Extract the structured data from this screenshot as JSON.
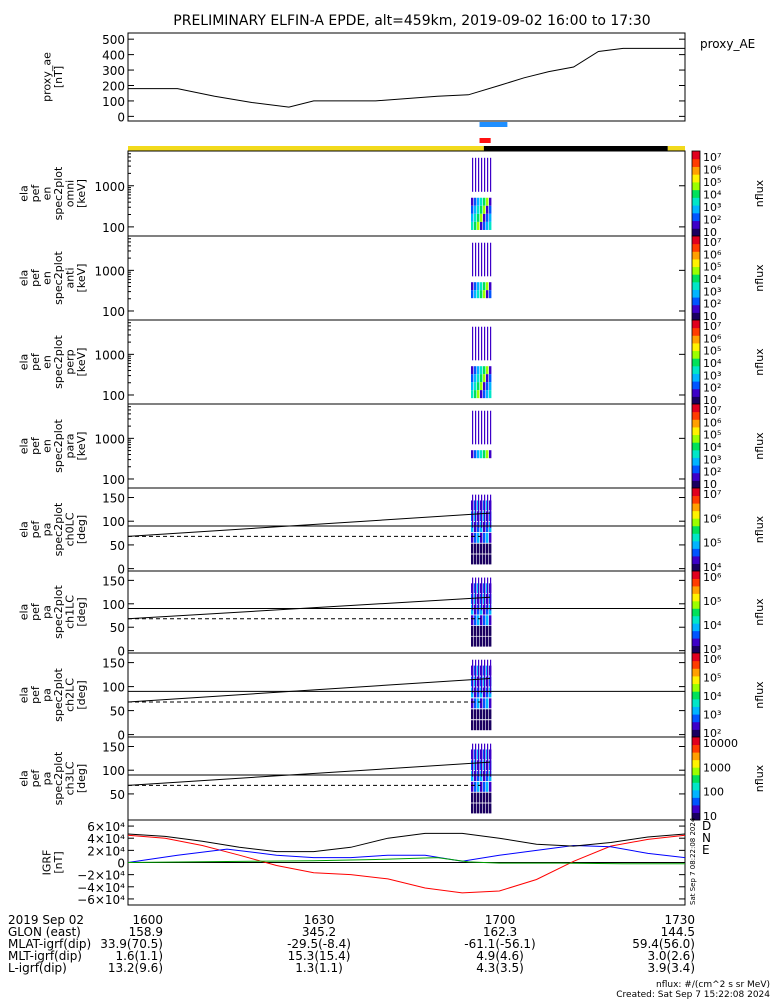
{
  "title": "PRELIMINARY ELFIN-A EPDE, alt=459km, 2019-09-02 16:00 to 17:30",
  "colors": {
    "yellow_bar": "#f2da1c",
    "black_bar": "#000000",
    "blue_marker": "#1f8fff",
    "red_marker": "#ff1010",
    "bx": "#0000ff",
    "by": "#00b000",
    "bz": "#ff0000"
  },
  "chart_data": [
    {
      "id": "proxy_ae",
      "type": "line",
      "ylabel_lines": [
        "proxy_ae",
        "[nT]"
      ],
      "series_label": "proxy_AE",
      "ylim": [
        -30,
        540
      ],
      "yticks": [
        0,
        100,
        200,
        300,
        400,
        500
      ],
      "x_unit": "minutes after 16:00",
      "xlim": [
        0,
        90
      ],
      "x": [
        0,
        8,
        14,
        20,
        26,
        30,
        36,
        40,
        50,
        55,
        60,
        64,
        68,
        72,
        76,
        80,
        84,
        88,
        90
      ],
      "values": [
        180,
        180,
        130,
        90,
        60,
        100,
        100,
        100,
        130,
        140,
        200,
        250,
        290,
        320,
        420,
        440,
        440,
        440,
        440
      ],
      "markers": {
        "blue": [
          56.8,
          61.3
        ],
        "red": [
          56.8,
          58.6
        ]
      },
      "orbit_bar": {
        "yellow": [
          [
            0,
            57.5
          ],
          [
            87.2,
            90
          ]
        ],
        "black": [
          [
            57.5,
            87.2
          ]
        ]
      }
    },
    {
      "id": "en_omni",
      "type": "heatmap",
      "ylabel_lines": [
        "ela",
        "pef",
        "en",
        "spec2plot",
        "omni",
        "[keV]"
      ],
      "ylim": [
        60,
        7000
      ],
      "yscale": "log",
      "yticks": [
        "100",
        "1000"
      ],
      "colorbar": {
        "label": "nflux",
        "ticks": [
          "10",
          "10²",
          "10³",
          "10⁴",
          "10⁵",
          "10⁶",
          "10⁷"
        ]
      }
    },
    {
      "id": "en_anti",
      "type": "heatmap",
      "ylabel_lines": [
        "ela",
        "pef",
        "en",
        "spec2plot",
        "anti",
        "[keV]"
      ],
      "ylim": [
        60,
        7000
      ],
      "yscale": "log",
      "yticks": [
        "100",
        "1000"
      ],
      "colorbar": {
        "label": "nflux",
        "ticks": [
          "10",
          "10²",
          "10³",
          "10⁴",
          "10⁵",
          "10⁶",
          "10⁷"
        ]
      }
    },
    {
      "id": "en_perp",
      "type": "heatmap",
      "ylabel_lines": [
        "ela",
        "pef",
        "en",
        "spec2plot",
        "perp",
        "[keV]"
      ],
      "ylim": [
        60,
        7000
      ],
      "yscale": "log",
      "yticks": [
        "100",
        "1000"
      ],
      "colorbar": {
        "label": "nflux",
        "ticks": [
          "10",
          "10²",
          "10³",
          "10⁴",
          "10⁵",
          "10⁶",
          "10⁷"
        ]
      }
    },
    {
      "id": "en_para",
      "type": "heatmap",
      "ylabel_lines": [
        "ela",
        "pef",
        "en",
        "spec2plot",
        "para",
        "[keV]"
      ],
      "ylim": [
        60,
        7000
      ],
      "yscale": "log",
      "yticks": [
        "100",
        "1000"
      ],
      "colorbar": {
        "label": "nflux",
        "ticks": [
          "10",
          "10²",
          "10³",
          "10⁴",
          "10⁵",
          "10⁶",
          "10⁷"
        ]
      }
    },
    {
      "id": "pa_ch0",
      "type": "heatmap",
      "ylabel_lines": [
        "ela",
        "pef",
        "pa",
        "spec2plot",
        "ch0LC",
        "[deg]"
      ],
      "ylim": [
        -5,
        170
      ],
      "yticks": [
        "0",
        "50",
        "100",
        "150"
      ],
      "lines": {
        "ninety": 90,
        "lc_solid": [
          68,
          117
        ],
        "lc_dashed": 68
      },
      "colorbar": {
        "label": "nflux",
        "ticks": [
          "10⁴",
          "10⁵",
          "10⁶",
          "10⁷"
        ]
      }
    },
    {
      "id": "pa_ch1",
      "type": "heatmap",
      "ylabel_lines": [
        "ela",
        "pef",
        "pa",
        "spec2plot",
        "ch1LC",
        "[deg]"
      ],
      "ylim": [
        -5,
        170
      ],
      "yticks": [
        "0",
        "50",
        "100",
        "150"
      ],
      "lines": {
        "ninety": 90,
        "lc_solid": [
          68,
          114
        ],
        "lc_dashed": 68
      },
      "colorbar": {
        "label": "nflux",
        "ticks": [
          "10³",
          "10⁴",
          "10⁵",
          "10⁶"
        ]
      }
    },
    {
      "id": "pa_ch2",
      "type": "heatmap",
      "ylabel_lines": [
        "ela",
        "pef",
        "pa",
        "spec2plot",
        "ch2LC",
        "[deg]"
      ],
      "ylim": [
        -5,
        170
      ],
      "yticks": [
        "0",
        "50",
        "100",
        "150"
      ],
      "lines": {
        "ninety": 90,
        "lc_solid": [
          68,
          117
        ],
        "lc_dashed": 68
      },
      "colorbar": {
        "label": "nflux",
        "ticks": [
          "10²",
          "10³",
          "10⁴",
          "10⁵",
          "10⁶"
        ]
      }
    },
    {
      "id": "pa_ch3",
      "type": "heatmap",
      "ylabel_lines": [
        "ela",
        "pef",
        "pa",
        "spec2plot",
        "ch3LC",
        "[deg]"
      ],
      "ylim": [
        -5,
        170
      ],
      "yticks": [
        "50",
        "100",
        "150"
      ],
      "lines": {
        "ninety": 90,
        "lc_solid": [
          68,
          117
        ],
        "lc_dashed": 68
      },
      "colorbar": {
        "label": "nflux",
        "ticks": [
          "10",
          "100",
          "1000",
          "10000"
        ]
      }
    },
    {
      "id": "igrf",
      "type": "line",
      "ylabel_lines": [
        "IGRF",
        "[nT]"
      ],
      "ylim": [
        -70000,
        70000
      ],
      "yticks": [
        "−6×10⁴",
        "−4×10⁴",
        "−2×10⁴",
        "0",
        "2×10⁴",
        "4×10⁴",
        "6×10⁴"
      ],
      "xlim": [
        0,
        90
      ],
      "series": [
        {
          "name": "D",
          "color": "#ff0000",
          "x": [
            0,
            6,
            12,
            18,
            24,
            30,
            36,
            42,
            48,
            54,
            60,
            66,
            72,
            78,
            84,
            90
          ],
          "values": [
            45000,
            40000,
            28000,
            12000,
            -5000,
            -17000,
            -20000,
            -27000,
            -42000,
            -50000,
            -47000,
            -28000,
            2000,
            27000,
            38000,
            45000
          ]
        },
        {
          "name": "N",
          "color": "#0000ff",
          "x": [
            0,
            8,
            16,
            24,
            30,
            36,
            42,
            48,
            54,
            60,
            66,
            72,
            78,
            84,
            90
          ],
          "values": [
            0,
            12000,
            22000,
            12000,
            8000,
            8000,
            12000,
            12000,
            2000,
            12000,
            20000,
            28000,
            26000,
            15000,
            8000
          ]
        },
        {
          "name": "E",
          "color": "#00a000",
          "x": [
            0,
            10,
            20,
            30,
            40,
            50,
            55,
            60,
            70,
            80,
            90
          ],
          "values": [
            0,
            1000,
            2000,
            3000,
            5000,
            8000,
            1000,
            -1000,
            -1000,
            -2000,
            -2000
          ]
        },
        {
          "name": "",
          "color": "#000000",
          "x": [
            0,
            6,
            12,
            18,
            24,
            30,
            36,
            42,
            48,
            54,
            60,
            66,
            72,
            78,
            84,
            90
          ],
          "values": [
            47000,
            43000,
            35000,
            25000,
            18000,
            18000,
            25000,
            40000,
            48000,
            48000,
            40000,
            30000,
            27000,
            33000,
            42000,
            47000
          ]
        }
      ],
      "side_labels": [
        "D",
        "N",
        "E"
      ],
      "stamp": "Sat Sep  7 08:22:08 2024"
    }
  ],
  "footer": {
    "row_labels": [
      "2019 Sep 02",
      "GLON (east)",
      "MLAT-igrf(dip)",
      "MLT-igrf(dip)",
      "L-igrf(dip)"
    ],
    "columns": [
      {
        "time": "1600",
        "glon": "158.9",
        "mlat": "33.9(70.5)",
        "mlt": "1.6(1.1)",
        "l": "13.2(9.6)"
      },
      {
        "time": "1630",
        "glon": "345.2",
        "mlat": "-29.5(-8.4)",
        "mlt": "15.3(15.4)",
        "l": "1.3(1.1)"
      },
      {
        "time": "1700",
        "glon": "162.3",
        "mlat": "-61.1(-56.1)",
        "mlt": "4.9(4.6)",
        "l": "4.3(3.5)"
      },
      {
        "time": "1730",
        "glon": "144.5",
        "mlat": "59.4(56.0)",
        "mlt": "3.0(2.6)",
        "l": "3.9(3.4)"
      }
    ],
    "units_note": "nflux: #/(cm^2 s sr MeV)",
    "created": "Created: Sat Sep  7 15:22:08 2024"
  }
}
